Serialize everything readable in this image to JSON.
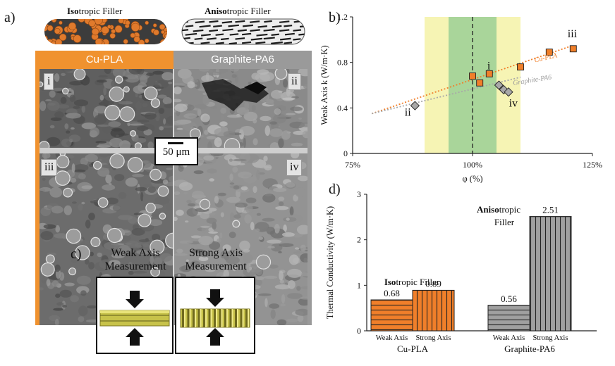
{
  "panel_a": {
    "letter": "a)",
    "isotropic_title_bold": "Iso",
    "isotropic_title_rest": "tropic Filler",
    "anisotropic_title_bold": "Aniso",
    "anisotropic_title_rest": "tropic Filler",
    "left_header": "Cu-PLA",
    "right_header": "Graphite-PA6",
    "labels": [
      "i",
      "ii",
      "iii",
      "iv"
    ],
    "scale_bar": "50 μm",
    "colors": {
      "cu_pla": "#f0922f",
      "graphite_pa6": "#9a9a9a"
    }
  },
  "panel_b": {
    "letter": "b)"
  },
  "panel_c": {
    "letter": "c)",
    "weak_title_line1": "Weak Axis",
    "weak_title_line2": "Measurement",
    "strong_title_line1": "Strong Axis",
    "strong_title_line2": "Measurement"
  },
  "panel_d": {
    "letter": "d)"
  },
  "chart_data": [
    {
      "type": "scatter",
      "panel": "b",
      "xlabel": "φ (%)",
      "ylabel": "Weak Axis k (W/m·K)",
      "xlim": [
        75,
        125
      ],
      "ylim": [
        0,
        1.2
      ],
      "xticks": [
        "75%",
        "100%",
        "125%"
      ],
      "yticks": [
        "0",
        "0.4",
        "0.8",
        "1.2"
      ],
      "bands": [
        {
          "x0": 90,
          "x1": 110,
          "color": "#f6f4b4"
        },
        {
          "x0": 95,
          "x1": 105,
          "color": "#a9d59a"
        }
      ],
      "vline": 100,
      "series": [
        {
          "name": "Cu-PLA",
          "color": "#f07f2a",
          "marker": "square",
          "x": [
            100,
            101.5,
            103.5,
            110,
            116,
            121
          ],
          "y": [
            0.68,
            0.62,
            0.7,
            0.76,
            0.89,
            0.92
          ],
          "trend": {
            "x": [
              79,
              121
            ],
            "y": [
              0.35,
              0.95
            ]
          }
        },
        {
          "name": "Graphite-PA6",
          "color": "#a8a8a8",
          "marker": "diamond",
          "x": [
            88,
            105.5,
            106.5,
            107.5
          ],
          "y": [
            0.42,
            0.6,
            0.56,
            0.54
          ],
          "trend": {
            "x": [
              79,
              110
            ],
            "y": [
              0.35,
              0.67
            ]
          }
        }
      ],
      "annotations": [
        {
          "text": "i",
          "x": 103.4,
          "y": 0.74
        },
        {
          "text": "ii",
          "x": 86.5,
          "y": 0.33
        },
        {
          "text": "iii",
          "x": 120.8,
          "y": 1.02
        },
        {
          "text": "iv",
          "x": 108.5,
          "y": 0.41
        }
      ]
    },
    {
      "type": "bar",
      "panel": "d",
      "ylabel": "Thermal Conductivity (W/m·K)",
      "ylim": [
        0,
        3
      ],
      "yticks": [
        "0",
        "1",
        "2",
        "3"
      ],
      "groups": [
        "Cu-PLA",
        "Graphite-PA6"
      ],
      "bars": [
        {
          "group": "Cu-PLA",
          "label": "Weak Axis",
          "value": 0.68,
          "value_label": "0.68",
          "color": "#f07f2a",
          "hatch": "horizontal"
        },
        {
          "group": "Cu-PLA",
          "label": "Strong Axis",
          "value": 0.89,
          "value_label": "0.89",
          "color": "#f07f2a",
          "hatch": "vertical"
        },
        {
          "group": "Graphite-PA6",
          "label": "Weak Axis",
          "value": 0.56,
          "value_label": "0.56",
          "color": "#a0a0a0",
          "hatch": "horizontal"
        },
        {
          "group": "Graphite-PA6",
          "label": "Strong Axis",
          "value": 2.51,
          "value_label": "2.51",
          "color": "#a0a0a0",
          "hatch": "vertical"
        }
      ],
      "annotations": [
        {
          "bold": "Iso",
          "rest": "tropic Filler"
        },
        {
          "bold": "Aniso",
          "rest": "tropic",
          "line2": "Filler"
        }
      ]
    }
  ]
}
